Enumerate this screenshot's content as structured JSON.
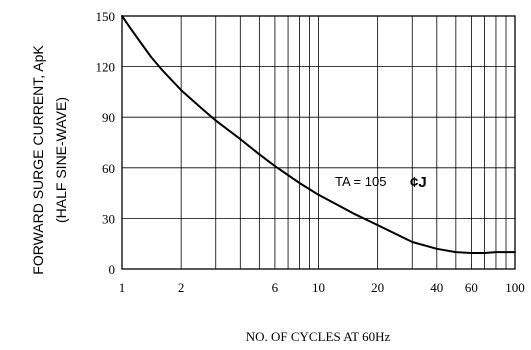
{
  "chart_data": {
    "type": "line",
    "xscale": "log",
    "xlim": [
      1,
      100
    ],
    "ylim": [
      0,
      150
    ],
    "grid": true,
    "xlabel": "NO. OF CYCLES AT 60Hz",
    "ylabel_line1": "FORWARD SURGE CURRENT, ApK",
    "ylabel_line2": "(HALF SINE-WAVE)",
    "x_ticks": [
      1,
      2,
      6,
      10,
      20,
      40,
      60,
      100
    ],
    "x_tick_labels": [
      "1",
      "2",
      "6",
      "10",
      "20",
      "40",
      "60",
      "100"
    ],
    "x_gridlines": [
      1,
      2,
      3,
      4,
      5,
      6,
      7,
      8,
      9,
      10,
      20,
      30,
      40,
      50,
      60,
      70,
      80,
      90,
      100
    ],
    "y_ticks": [
      0,
      30,
      60,
      90,
      120,
      150
    ],
    "y_tick_labels": [
      "0",
      "30",
      "60",
      "90",
      "120",
      "150"
    ],
    "annotation_text": "TA = 105",
    "annotation_symbol": "¢J",
    "series": [
      {
        "x": [
          1,
          1.1,
          1.25,
          1.4,
          1.6,
          2,
          2.5,
          3,
          4,
          5,
          6,
          8,
          10,
          15,
          20,
          30,
          40,
          50,
          60,
          70,
          80,
          100
        ],
        "y": [
          150,
          143,
          134,
          126,
          118,
          106,
          96,
          88,
          77,
          68,
          61,
          51,
          44,
          33,
          26,
          16,
          12,
          10,
          9.5,
          9.5,
          10,
          10
        ]
      }
    ]
  }
}
